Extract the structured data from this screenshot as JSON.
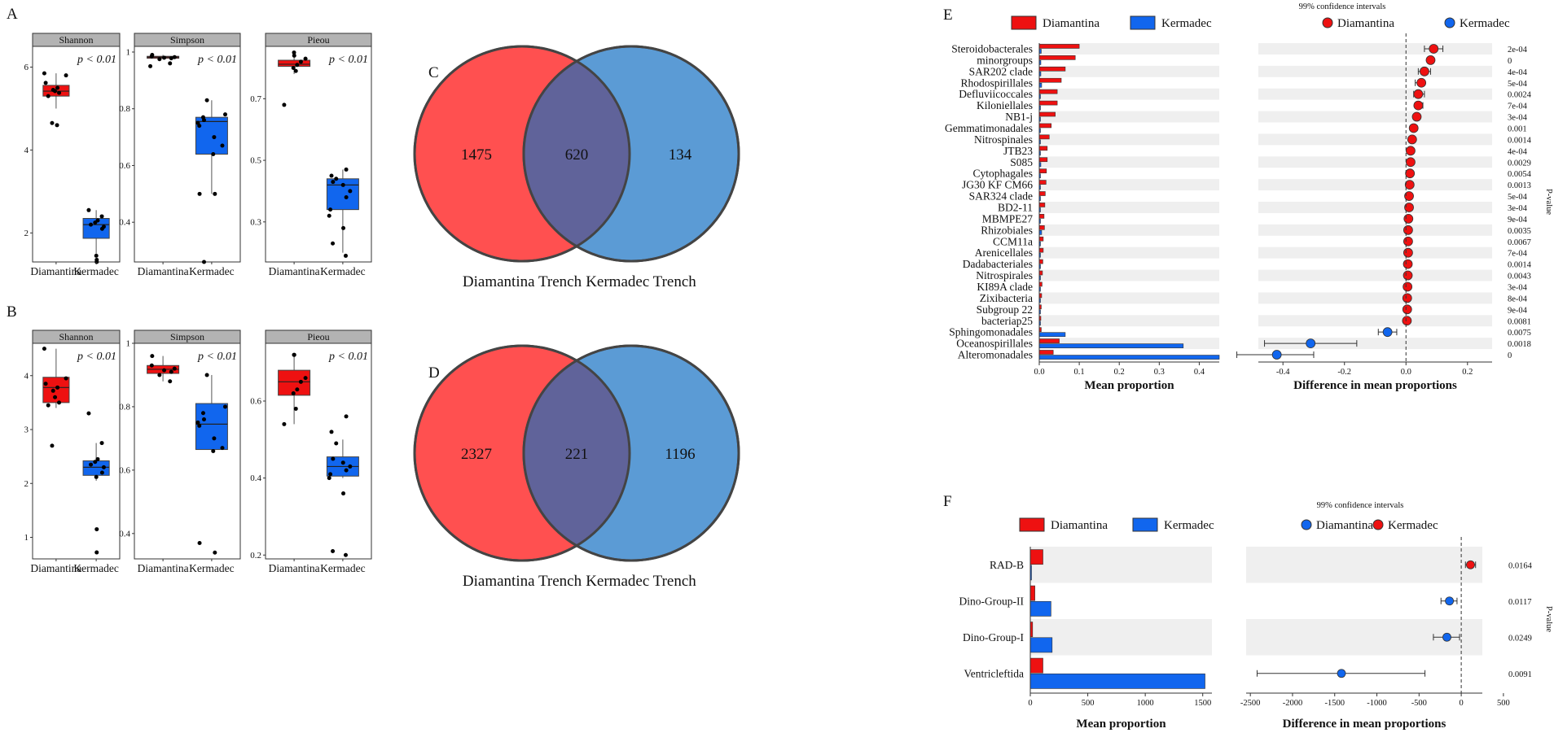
{
  "figure_title": "",
  "chart_data": [
    {
      "panel": "A",
      "type": "box",
      "groups": [
        "Diamantina",
        "Kermadec"
      ],
      "colors": {
        "Diamantina": "#ee1111",
        "Kermadec": "#1166ee"
      },
      "facets": [
        {
          "name": "Shannon",
          "pvalue": "p < 0.01",
          "ylim": [
            1.3,
            6.5
          ],
          "ticks": [
            2,
            4,
            6
          ],
          "boxes": [
            {
              "group": "Diamantina",
              "q1": 5.3,
              "median": 5.42,
              "q3": 5.56,
              "min": 5.0,
              "max": 5.85,
              "points": [
                5.85,
                5.8,
                5.62,
                5.5,
                5.45,
                5.42,
                5.38,
                5.3,
                4.65,
                4.6
              ]
            },
            {
              "group": "Kermadec",
              "q1": 1.87,
              "median": 2.2,
              "q3": 2.35,
              "min": 1.5,
              "max": 2.55,
              "points": [
                2.55,
                2.4,
                2.3,
                2.25,
                2.2,
                2.15,
                2.1,
                1.45,
                1.35,
                1.3
              ]
            }
          ]
        },
        {
          "name": "Simpson",
          "pvalue": "p < 0.01",
          "ylim": [
            0.26,
            1.02
          ],
          "ticks": [
            0.4,
            0.6,
            0.8,
            1.0
          ],
          "boxes": [
            {
              "group": "Diamantina",
              "q1": 0.978,
              "median": 0.982,
              "q3": 0.985,
              "min": 0.975,
              "max": 0.99,
              "points": [
                0.99,
                0.985,
                0.982,
                0.98,
                0.978,
                0.975,
                0.96,
                0.95
              ]
            },
            {
              "group": "Kermadec",
              "q1": 0.64,
              "median": 0.755,
              "q3": 0.77,
              "min": 0.5,
              "max": 0.83,
              "points": [
                0.83,
                0.78,
                0.77,
                0.76,
                0.75,
                0.74,
                0.7,
                0.67,
                0.64,
                0.5,
                0.5,
                0.26
              ]
            }
          ]
        },
        {
          "name": "Pieou",
          "pvalue": "p < 0.01",
          "ylim": [
            0.17,
            0.87
          ],
          "ticks": [
            0.3,
            0.5,
            0.7
          ],
          "boxes": [
            {
              "group": "Diamantina",
              "q1": 0.805,
              "median": 0.812,
              "q3": 0.825,
              "min": 0.78,
              "max": 0.85,
              "points": [
                0.85,
                0.84,
                0.83,
                0.82,
                0.81,
                0.8,
                0.79,
                0.68
              ]
            },
            {
              "group": "Kermadec",
              "q1": 0.34,
              "median": 0.42,
              "q3": 0.44,
              "min": 0.2,
              "max": 0.47,
              "points": [
                0.47,
                0.45,
                0.44,
                0.43,
                0.42,
                0.4,
                0.38,
                0.34,
                0.32,
                0.28,
                0.23,
                0.19
              ]
            }
          ]
        }
      ]
    },
    {
      "panel": "B",
      "type": "box",
      "groups": [
        "Diamantina",
        "Kermadec"
      ],
      "colors": {
        "Diamantina": "#ee1111",
        "Kermadec": "#1166ee"
      },
      "facets": [
        {
          "name": "Shannon",
          "pvalue": "p < 0.01",
          "ylim": [
            0.6,
            4.6
          ],
          "ticks": [
            1,
            2,
            3,
            4
          ],
          "boxes": [
            {
              "group": "Diamantina",
              "q1": 3.5,
              "median": 3.78,
              "q3": 3.97,
              "min": 3.4,
              "max": 4.5,
              "points": [
                4.5,
                3.95,
                3.85,
                3.78,
                3.72,
                3.6,
                3.5,
                3.45,
                2.7
              ]
            },
            {
              "group": "Kermadec",
              "q1": 2.15,
              "median": 2.3,
              "q3": 2.42,
              "min": 2.05,
              "max": 2.75,
              "points": [
                3.3,
                2.75,
                2.45,
                2.4,
                2.35,
                2.3,
                2.2,
                2.12,
                1.15,
                0.72
              ]
            }
          ]
        },
        {
          "name": "Simpson",
          "pvalue": "p < 0.01",
          "ylim": [
            0.32,
            1.0
          ],
          "ticks": [
            0.4,
            0.6,
            0.8,
            1.0
          ],
          "boxes": [
            {
              "group": "Diamantina",
              "q1": 0.905,
              "median": 0.918,
              "q3": 0.93,
              "min": 0.88,
              "max": 0.96,
              "points": [
                0.96,
                0.93,
                0.92,
                0.915,
                0.91,
                0.9,
                0.88
              ]
            },
            {
              "group": "Kermadec",
              "q1": 0.665,
              "median": 0.745,
              "q3": 0.81,
              "min": 0.66,
              "max": 0.9,
              "points": [
                0.9,
                0.8,
                0.78,
                0.76,
                0.75,
                0.74,
                0.7,
                0.67,
                0.66,
                0.37,
                0.34
              ]
            }
          ]
        },
        {
          "name": "Pieou",
          "pvalue": "p < 0.01",
          "ylim": [
            0.19,
            0.75
          ],
          "ticks": [
            0.2,
            0.4,
            0.6
          ],
          "boxes": [
            {
              "group": "Diamantina",
              "q1": 0.615,
              "median": 0.65,
              "q3": 0.68,
              "min": 0.54,
              "max": 0.72,
              "points": [
                0.72,
                0.72,
                0.66,
                0.65,
                0.63,
                0.62,
                0.58,
                0.54
              ]
            },
            {
              "group": "Kermadec",
              "q1": 0.405,
              "median": 0.43,
              "q3": 0.455,
              "min": 0.4,
              "max": 0.5,
              "points": [
                0.56,
                0.52,
                0.49,
                0.45,
                0.44,
                0.43,
                0.42,
                0.41,
                0.4,
                0.36,
                0.21,
                0.2
              ]
            }
          ]
        }
      ]
    },
    {
      "panel": "C",
      "type": "venn",
      "sets": [
        "Diamantina Trench",
        "Kermadec Trench"
      ],
      "left_only": 1475,
      "shared": 620,
      "right_only": 134,
      "colors": [
        "#ff5050",
        "#5b9bd5",
        "#60639a"
      ]
    },
    {
      "panel": "D",
      "type": "venn",
      "sets": [
        "Diamantina Trench",
        "Kermadec Trench"
      ],
      "left_only": 2327,
      "shared": 221,
      "right_only": 1196,
      "colors": [
        "#ff5050",
        "#5b9bd5",
        "#60639a"
      ]
    },
    {
      "panel": "E",
      "type": "extended_error_bar",
      "legend_left": [
        "Diamantina",
        "Kermadec"
      ],
      "ci_title": "99% confidence intervals",
      "legend_right": [
        "Diamantina",
        "Kermadec"
      ],
      "xlabel_left": "Mean proportion",
      "xlabel_right": "Difference in mean proportions",
      "ylabel_right": "P-value",
      "xticks_left": [
        "0.0",
        "0.1",
        "0.2",
        "0.3",
        "0.4"
      ],
      "xlim_left": [
        0,
        0.45
      ],
      "xticks_right": [
        "-0.4",
        "-0.2",
        "0.0",
        "0.2"
      ],
      "xlim_right": [
        -0.48,
        0.28
      ],
      "rows": [
        {
          "name": "Steroidobacterales",
          "d": 0.1,
          "k": 0.005,
          "diff": 0.09,
          "lo": 0.06,
          "hi": 0.12,
          "p": "2e-04"
        },
        {
          "name": "minorgroups",
          "d": 0.09,
          "k": 0.004,
          "diff": 0.08,
          "lo": 0.07,
          "hi": 0.09,
          "p": "0"
        },
        {
          "name": "SAR202 clade",
          "d": 0.065,
          "k": 0.004,
          "diff": 0.06,
          "lo": 0.04,
          "hi": 0.08,
          "p": "4e-04"
        },
        {
          "name": "Rhodospirillales",
          "d": 0.055,
          "k": 0.006,
          "diff": 0.05,
          "lo": 0.03,
          "hi": 0.06,
          "p": "5e-04"
        },
        {
          "name": "Defluviicoccales",
          "d": 0.045,
          "k": 0.003,
          "diff": 0.04,
          "lo": 0.025,
          "hi": 0.06,
          "p": "0.0024"
        },
        {
          "name": "Kiloniellales",
          "d": 0.045,
          "k": 0.003,
          "diff": 0.04,
          "lo": 0.03,
          "hi": 0.055,
          "p": "7e-04"
        },
        {
          "name": "NB1-j",
          "d": 0.04,
          "k": 0.003,
          "diff": 0.035,
          "lo": 0.025,
          "hi": 0.045,
          "p": "3e-04"
        },
        {
          "name": "Gemmatimonadales",
          "d": 0.03,
          "k": 0.003,
          "diff": 0.025,
          "lo": 0.018,
          "hi": 0.032,
          "p": "0.001"
        },
        {
          "name": "Nitrospinales",
          "d": 0.025,
          "k": 0.003,
          "diff": 0.02,
          "lo": 0.012,
          "hi": 0.028,
          "p": "0.0014"
        },
        {
          "name": "JTB23",
          "d": 0.02,
          "k": 0.003,
          "diff": 0.015,
          "lo": 0.01,
          "hi": 0.02,
          "p": "4e-04"
        },
        {
          "name": "S085",
          "d": 0.02,
          "k": 0.004,
          "diff": 0.015,
          "lo": 0.01,
          "hi": 0.02,
          "p": "0.0029"
        },
        {
          "name": "Cytophagales",
          "d": 0.018,
          "k": 0.003,
          "diff": 0.013,
          "lo": 0.008,
          "hi": 0.018,
          "p": "0.0054"
        },
        {
          "name": "JG30 KF CM66",
          "d": 0.017,
          "k": 0.003,
          "diff": 0.012,
          "lo": 0.008,
          "hi": 0.016,
          "p": "0.0013"
        },
        {
          "name": "SAR324 clade",
          "d": 0.015,
          "k": 0.003,
          "diff": 0.01,
          "lo": 0.006,
          "hi": 0.014,
          "p": "5e-04"
        },
        {
          "name": "BD2-11",
          "d": 0.014,
          "k": 0.003,
          "diff": 0.01,
          "lo": 0.006,
          "hi": 0.014,
          "p": "3e-04"
        },
        {
          "name": "MBMPE27",
          "d": 0.012,
          "k": 0.003,
          "diff": 0.008,
          "lo": 0.005,
          "hi": 0.011,
          "p": "9e-04"
        },
        {
          "name": "Rhizobiales",
          "d": 0.013,
          "k": 0.006,
          "diff": 0.007,
          "lo": 0.004,
          "hi": 0.01,
          "p": "0.0035"
        },
        {
          "name": "CCM11a",
          "d": 0.01,
          "k": 0.002,
          "diff": 0.007,
          "lo": 0.004,
          "hi": 0.01,
          "p": "0.0067"
        },
        {
          "name": "Arenicellales",
          "d": 0.01,
          "k": 0.002,
          "diff": 0.007,
          "lo": 0.004,
          "hi": 0.01,
          "p": "7e-04"
        },
        {
          "name": "Dadabacteriales",
          "d": 0.009,
          "k": 0.002,
          "diff": 0.006,
          "lo": 0.003,
          "hi": 0.009,
          "p": "0.0014"
        },
        {
          "name": "Nitrospirales",
          "d": 0.008,
          "k": 0.002,
          "diff": 0.006,
          "lo": 0.003,
          "hi": 0.009,
          "p": "0.0043"
        },
        {
          "name": "KI89A clade",
          "d": 0.007,
          "k": 0.002,
          "diff": 0.005,
          "lo": 0.003,
          "hi": 0.008,
          "p": "3e-04"
        },
        {
          "name": "Zixibacteria",
          "d": 0.006,
          "k": 0.002,
          "diff": 0.004,
          "lo": 0.002,
          "hi": 0.006,
          "p": "8e-04"
        },
        {
          "name": "Subgroup 22",
          "d": 0.005,
          "k": 0.001,
          "diff": 0.004,
          "lo": 0.002,
          "hi": 0.006,
          "p": "9e-04"
        },
        {
          "name": "bacteriap25",
          "d": 0.004,
          "k": 0.001,
          "diff": 0.003,
          "lo": 0.001,
          "hi": 0.005,
          "p": "0.0081"
        },
        {
          "name": "Sphingomonadales",
          "d": 0.005,
          "k": 0.065,
          "diff": -0.06,
          "lo": -0.09,
          "hi": -0.03,
          "p": "0.0075"
        },
        {
          "name": "Oceanospirillales",
          "d": 0.05,
          "k": 0.36,
          "diff": -0.31,
          "lo": -0.46,
          "hi": -0.16,
          "p": "0.0018"
        },
        {
          "name": "Alteromonadales",
          "d": 0.035,
          "k": 0.45,
          "diff": -0.42,
          "lo": -0.55,
          "hi": -0.3,
          "p": "0"
        }
      ]
    },
    {
      "panel": "F",
      "type": "extended_error_bar",
      "legend_left": [
        "Diamantina",
        "Kermadec"
      ],
      "ci_title": "99% confidence intervals",
      "legend_right": [
        "Diamantina",
        "Kermadec"
      ],
      "xlabel_left": "Mean proportion",
      "xlabel_right": "Difference in mean proportions",
      "ylabel_right": "P-value",
      "xticks_left": [
        "0",
        "500",
        "1000",
        "1500"
      ],
      "xlim_left": [
        0,
        1580
      ],
      "xticks_right": [
        "-2500",
        "-2000",
        "-1500",
        "-1000",
        "-500",
        "0",
        "500"
      ],
      "xlim_right": [
        -2550,
        250
      ],
      "rows": [
        {
          "name": "RAD-B",
          "d": 110,
          "k": 0,
          "diff": 110,
          "lo": 50,
          "hi": 170,
          "p": "0.0164"
        },
        {
          "name": "Dino-Group-II",
          "d": 40,
          "k": 180,
          "diff": -140,
          "lo": -240,
          "hi": -50,
          "p": "0.0117"
        },
        {
          "name": "Dino-Group-I",
          "d": 20,
          "k": 190,
          "diff": -170,
          "lo": -330,
          "hi": -20,
          "p": "0.0249"
        },
        {
          "name": "Ventricleftida",
          "d": 110,
          "k": 1520,
          "diff": -1420,
          "lo": -2420,
          "hi": -430,
          "p": "0.0091"
        }
      ]
    }
  ],
  "panel_labels": {
    "A": "A",
    "B": "B",
    "C": "C",
    "D": "D",
    "E": "E",
    "F": "F"
  }
}
